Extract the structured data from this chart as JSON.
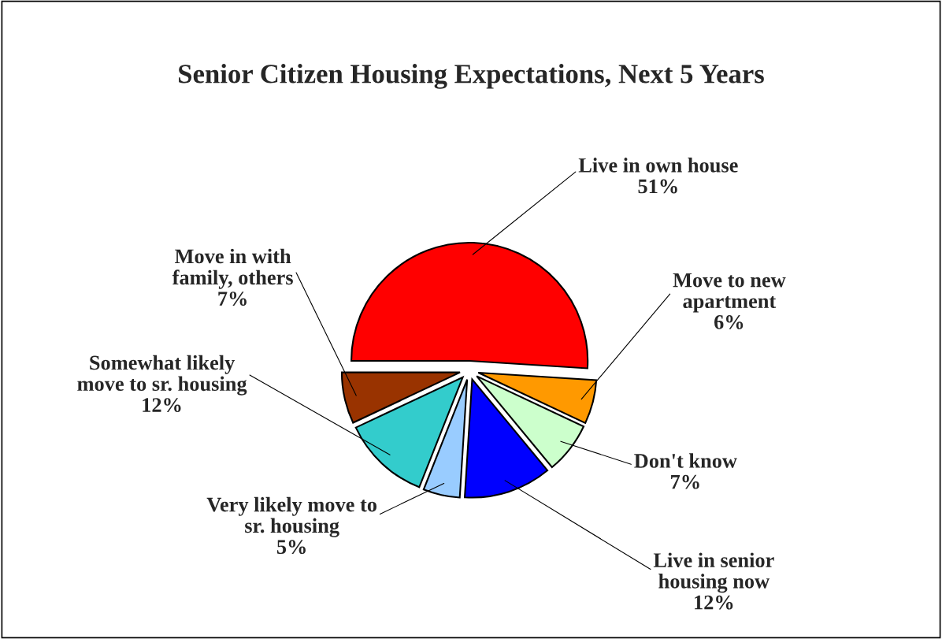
{
  "chart_data": {
    "type": "pie",
    "title": "Senior Citizen Housing Expectations, Next 5 Years",
    "categories": [
      "Live in own house",
      "Move to new\napartment",
      "Don't know",
      "Live in senior\nhousing now",
      "Very likely move to\nsr. housing",
      "Somewhat likely\nmove to sr. housing",
      "Move in with\nfamily, others"
    ],
    "values": [
      51,
      6,
      7,
      12,
      5,
      12,
      7
    ],
    "value_labels": [
      "51%",
      "6%",
      "7%",
      "12%",
      "5%",
      "12%",
      "7%"
    ],
    "colors": [
      "#ff0000",
      "#ff9900",
      "#ccffcc",
      "#0000ff",
      "#99ccff",
      "#33cccc",
      "#993300"
    ],
    "legend": false
  }
}
